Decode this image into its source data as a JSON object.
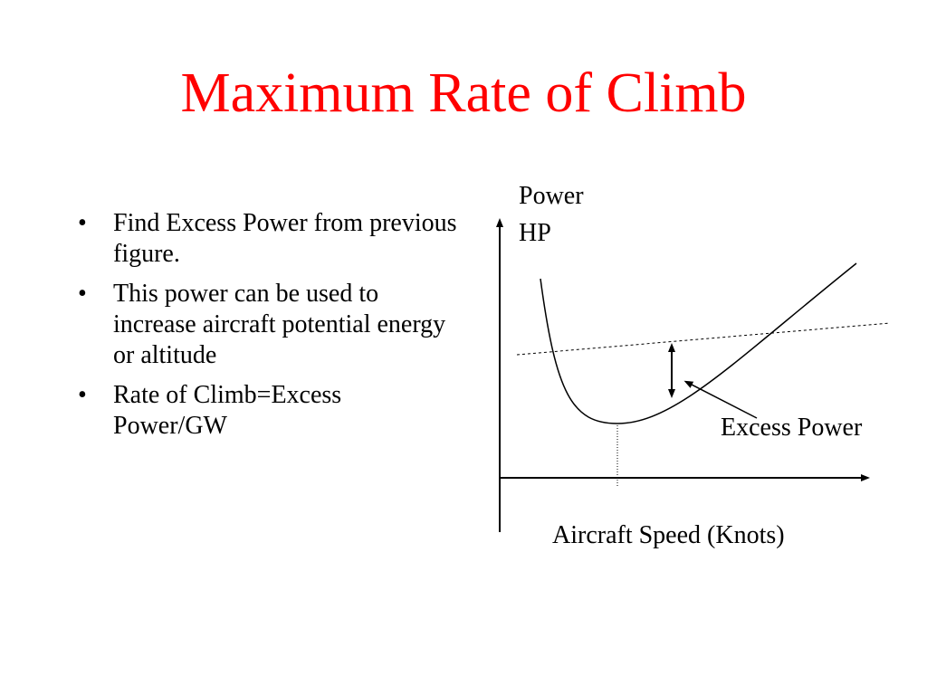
{
  "slide": {
    "title": "Maximum Rate of Climb",
    "title_color": "#ff0000"
  },
  "bullets": [
    "Find Excess Power from previous figure.",
    "This power can be used to increase aircraft potential energy or altitude",
    "Rate of Climb=Excess Power/GW"
  ],
  "diagram": {
    "y_axis_label_line1": "Power",
    "y_axis_label_line2": "HP",
    "x_axis_label": "Aircraft Speed (Knots)",
    "excess_power_label": "Excess Power",
    "curves": [
      {
        "name": "power-required-curve",
        "style": "solid"
      },
      {
        "name": "power-available-line",
        "style": "dashed"
      }
    ]
  }
}
